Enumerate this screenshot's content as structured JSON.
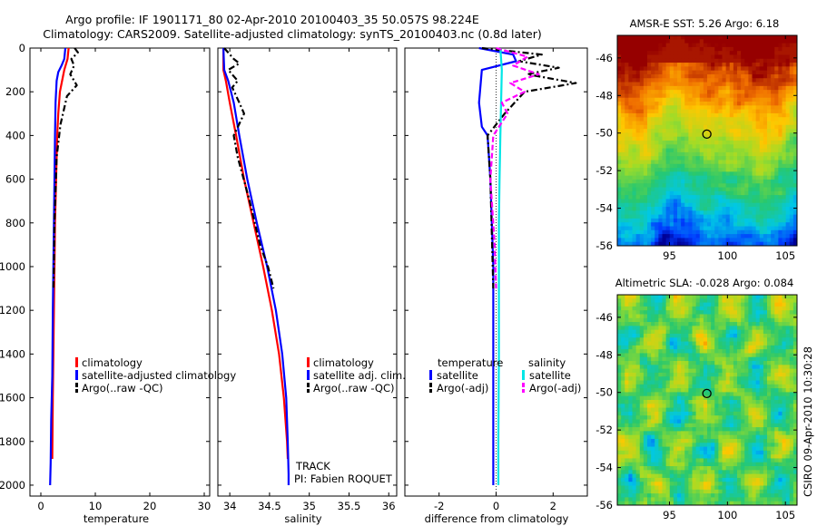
{
  "figure": {
    "title_line1": "Argo profile: IF 1901171_80 02-Apr-2010 20100403_35 50.057S 98.224E",
    "title_line2": "Climatology: CARS2009. Satellite-adjusted climatology: synTS_20100403.nc (0.8d later)",
    "side_label": "CSIRO 09-Apr-2010 10:30:28",
    "track_label": "TRACK",
    "pi_label": "PI: Fabien ROQUET"
  },
  "colors": {
    "climatology": "#ff0000",
    "satellite": "#0000ff",
    "argo": "#000000",
    "sal_satellite": "#00e6e6",
    "sal_argo": "#ff00ff"
  },
  "chart_data": [
    {
      "type": "line",
      "name": "temperature",
      "xlabel": "temperature",
      "ylim": [
        2050,
        0
      ],
      "xlim": [
        -2,
        31
      ],
      "xticks": [
        0,
        10,
        20,
        30
      ],
      "yticks": [
        0,
        200,
        400,
        600,
        800,
        1000,
        1200,
        1400,
        1600,
        1800,
        2000
      ],
      "series": [
        {
          "name": "climatology",
          "style": "solid",
          "x": [
            5.1,
            4.9,
            4.3,
            3.9,
            3.5,
            3.2,
            3.0,
            2.8,
            2.6,
            2.5,
            2.4,
            2.3,
            2.2,
            2.1
          ],
          "y": [
            0,
            50,
            100,
            150,
            200,
            300,
            400,
            600,
            800,
            1000,
            1200,
            1400,
            1600,
            1880
          ]
        },
        {
          "name": "satellite-adjusted climatology",
          "style": "solid",
          "x": [
            4.5,
            4.3,
            3.8,
            3.2,
            2.9,
            2.7,
            2.6,
            2.5,
            2.4,
            2.3,
            2.2,
            2.1,
            1.9,
            1.8,
            1.7
          ],
          "y": [
            0,
            50,
            80,
            110,
            150,
            250,
            400,
            600,
            800,
            1000,
            1200,
            1500,
            1700,
            1900,
            2000
          ]
        },
        {
          "name": "Argo(..raw -QC)",
          "style": "dashdot",
          "x": [
            6.2,
            6.8,
            5.6,
            6.1,
            5.4,
            6.6,
            4.8,
            3.6,
            2.9,
            2.7,
            2.5,
            2.4,
            2.3
          ],
          "y": [
            0,
            20,
            50,
            80,
            120,
            170,
            220,
            350,
            500,
            650,
            800,
            1000,
            1100
          ]
        }
      ],
      "legend": [
        "climatology",
        "satellite-adjusted climatology",
        "Argo(..raw -QC)"
      ]
    },
    {
      "type": "line",
      "name": "salinity",
      "xlabel": "salinity",
      "ylim": [
        2050,
        0
      ],
      "xlim": [
        33.85,
        36.1
      ],
      "xticks": [
        34,
        34.5,
        35,
        35.5,
        36
      ],
      "tick_labels": [
        "34",
        "34.5",
        "35",
        "35.5",
        "36"
      ],
      "series": [
        {
          "name": "climatology",
          "style": "solid",
          "x": [
            33.92,
            33.92,
            33.95,
            34.0,
            34.08,
            34.18,
            34.3,
            34.42,
            34.53,
            34.62,
            34.68,
            34.72,
            34.73
          ],
          "y": [
            0,
            100,
            150,
            250,
            400,
            600,
            800,
            1000,
            1200,
            1400,
            1600,
            1800,
            1880
          ]
        },
        {
          "name": "satellite adj. clim.",
          "style": "solid",
          "x": [
            33.92,
            33.93,
            33.98,
            34.05,
            34.12,
            34.22,
            34.34,
            34.47,
            34.58,
            34.66,
            34.71,
            34.73,
            34.74,
            34.74
          ],
          "y": [
            0,
            100,
            150,
            250,
            400,
            600,
            800,
            1000,
            1200,
            1400,
            1600,
            1800,
            1950,
            2000
          ]
        },
        {
          "name": "Argo(..raw -QC)",
          "style": "dashdot",
          "x": [
            33.93,
            34.05,
            34.12,
            33.98,
            34.1,
            34.03,
            34.12,
            34.18,
            34.05,
            34.1,
            34.25,
            34.38,
            34.48,
            34.55
          ],
          "y": [
            0,
            50,
            70,
            100,
            150,
            180,
            250,
            300,
            400,
            500,
            700,
            900,
            1000,
            1100
          ]
        }
      ],
      "legend": [
        "climatology",
        "satellite adj. clim.",
        "Argo(..raw -QC)"
      ]
    },
    {
      "type": "line",
      "name": "difference",
      "xlabel": "difference from climatology",
      "ylim": [
        2050,
        0
      ],
      "xlim": [
        -3.2,
        3.2
      ],
      "xticks": [
        -2,
        0,
        2
      ],
      "tick_labels": [
        "-2",
        "0",
        "2"
      ],
      "series": [
        {
          "name": "temperature satellite",
          "style": "solid",
          "color": "#0000ff",
          "x": [
            -0.6,
            0.6,
            0.7,
            -0.5,
            -0.6,
            -0.5,
            -0.3,
            -0.2,
            -0.15,
            -0.1,
            -0.1,
            -0.1,
            -0.1,
            -0.1
          ],
          "y": [
            0,
            30,
            60,
            100,
            250,
            360,
            400,
            600,
            800,
            1000,
            1200,
            1500,
            1800,
            2000
          ]
        },
        {
          "name": "temperature Argo(-adj)",
          "style": "dashdot",
          "color": "#000000",
          "x": [
            -0.5,
            1.6,
            0.8,
            2.2,
            1.1,
            2.8,
            1.0,
            0.3,
            -0.3,
            -0.2,
            -0.1
          ],
          "y": [
            0,
            30,
            60,
            90,
            120,
            160,
            200,
            300,
            400,
            600,
            1100
          ]
        },
        {
          "name": "salinity satellite",
          "style": "solid",
          "color": "#00e6e6",
          "x": [
            0.15,
            0.2,
            0.15,
            0.12,
            0.1,
            0.1,
            0.1,
            0.08,
            0.08
          ],
          "y": [
            0,
            100,
            400,
            600,
            800,
            1000,
            1400,
            1800,
            2000
          ]
        },
        {
          "name": "salinity Argo(-adj)",
          "style": "dashed",
          "color": "#ff00ff",
          "x": [
            0.0,
            1.1,
            0.6,
            1.5,
            0.5,
            1.0,
            0.2,
            0.4,
            -0.1,
            -0.2,
            -0.05,
            0.0
          ],
          "y": [
            0,
            40,
            80,
            120,
            160,
            200,
            250,
            300,
            400,
            600,
            900,
            1100
          ]
        }
      ],
      "legend_headers": [
        "temperature",
        "salinity"
      ],
      "legend": [
        "satellite",
        "Argo(-adj)",
        "satellite",
        "Argo(-adj)"
      ]
    },
    {
      "type": "heatmap",
      "name": "sst-map",
      "title": "AMSR-E SST: 5.26 Argo: 6.18",
      "xlim": [
        90.5,
        106
      ],
      "ylim": [
        -56,
        -44.8
      ],
      "xticks": [
        95,
        100,
        105
      ],
      "yticks": [
        -46,
        -48,
        -50,
        -52,
        -54,
        -56
      ],
      "marker": {
        "lon": 98.224,
        "lat": -50.057
      }
    },
    {
      "type": "heatmap",
      "name": "sla-map",
      "title": "Altimetric SLA: -0.028 Argo: 0.084",
      "xlim": [
        90.5,
        106
      ],
      "ylim": [
        -56,
        -44.8
      ],
      "xticks": [
        95,
        100,
        105
      ],
      "yticks": [
        -46,
        -48,
        -50,
        -52,
        -54,
        -56
      ],
      "marker": {
        "lon": 98.224,
        "lat": -50.057
      }
    }
  ]
}
